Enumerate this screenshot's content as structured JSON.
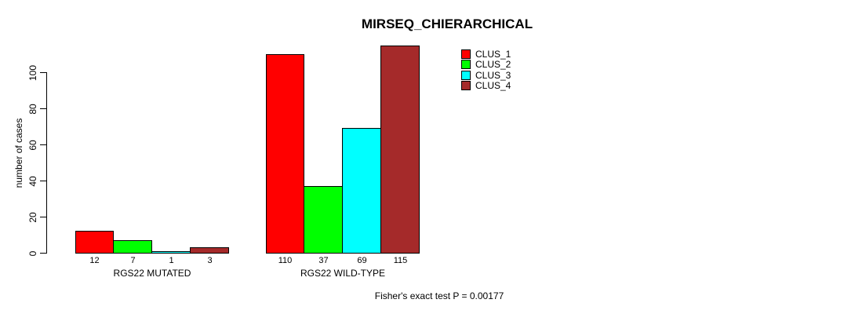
{
  "chart_data": {
    "type": "bar",
    "title": "MIRSEQ_CHIERARCHICAL",
    "ylabel": "number of cases",
    "xlabel": "",
    "yticks": [
      0,
      20,
      40,
      60,
      80,
      100
    ],
    "ylim": [
      0,
      115
    ],
    "grid": false,
    "legend_position": "top-right",
    "series": [
      {
        "name": "CLUS_1",
        "color": "#FF0000"
      },
      {
        "name": "CLUS_2",
        "color": "#00FF00"
      },
      {
        "name": "CLUS_3",
        "color": "#00FFFF"
      },
      {
        "name": "CLUS_4",
        "color": "#A52A2A"
      }
    ],
    "groups": [
      {
        "label": "RGS22 MUTATED",
        "values": [
          12,
          7,
          1,
          3
        ]
      },
      {
        "label": "RGS22 WILD-TYPE",
        "values": [
          110,
          37,
          69,
          115
        ]
      }
    ],
    "annotation": "Fisher's exact test P = 0.00177"
  }
}
